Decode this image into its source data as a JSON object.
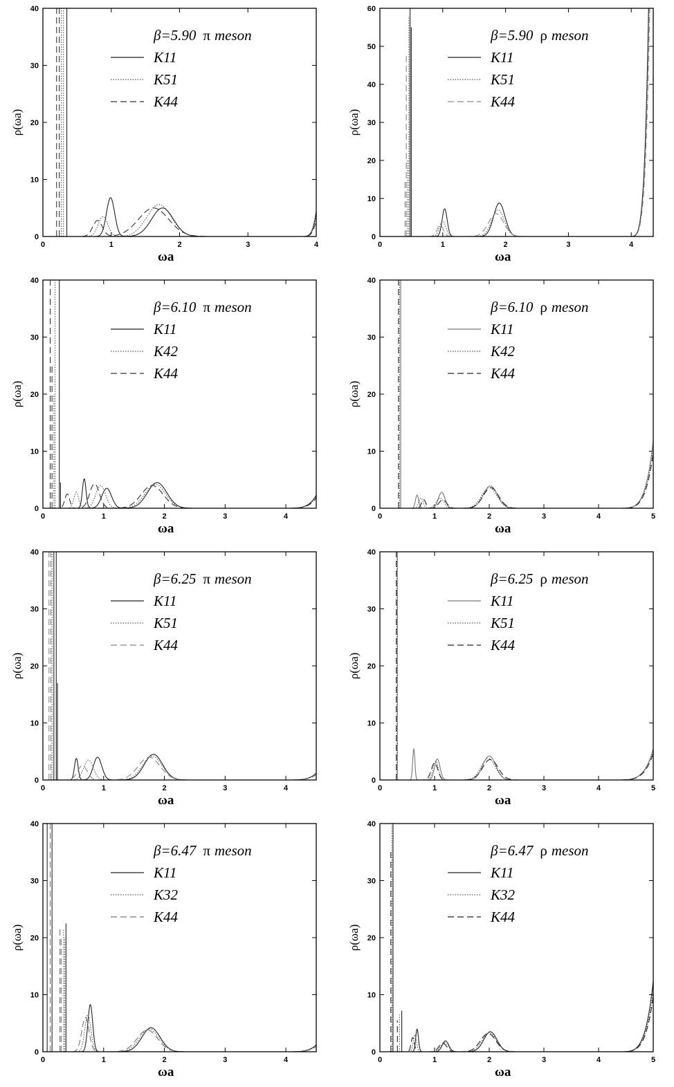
{
  "figure": {
    "background": "#ffffff"
  },
  "chart_data": [
    {
      "id": "p1",
      "type": "line",
      "title_beta": "β=5.90",
      "title_particle": "π",
      "title_suffix": "meson",
      "xlabel": "ωa",
      "ylabel": "ρ(ωa)",
      "xlim": [
        0,
        4
      ],
      "ylim": [
        0,
        40
      ],
      "xticks": [
        "0",
        "1",
        "2",
        "3",
        "4"
      ],
      "yticks": [
        "0",
        "10",
        "20",
        "30",
        "40"
      ],
      "legend": [
        "K11",
        "K51",
        "K44"
      ],
      "series": [
        {
          "name": "K11",
          "dash": "solid",
          "color": "#222222",
          "spikes": [
            [
              0.35,
              40
            ]
          ],
          "peaks": [
            [
              0.99,
              6.8,
              0.06
            ],
            [
              1.75,
              5.0,
              0.16
            ]
          ],
          "tail": [
            3.75,
            4.0,
            4.5
          ]
        },
        {
          "name": "K51",
          "dash": "dotted",
          "color": "#555555",
          "spikes": [
            [
              0.3,
              40
            ],
            [
              0.27,
              40
            ]
          ],
          "peaks": [
            [
              0.88,
              3.5,
              0.07
            ],
            [
              1.7,
              5.6,
              0.18
            ]
          ],
          "tail": [
            3.75,
            4.0,
            3.6
          ]
        },
        {
          "name": "K44",
          "dash": "dashed",
          "color": "#333333",
          "spikes": [
            [
              0.2,
              40
            ],
            [
              0.24,
              40
            ]
          ],
          "peaks": [
            [
              0.8,
              2.8,
              0.07
            ],
            [
              1.62,
              5.0,
              0.22
            ]
          ],
          "tail": [
            3.75,
            4.0,
            3.0
          ]
        }
      ]
    },
    {
      "id": "p2",
      "type": "line",
      "title_beta": "β=5.90",
      "title_particle": "ρ",
      "title_suffix": "meson",
      "xlabel": "ωa",
      "ylabel": "ρ(ωa)",
      "xlim": [
        0,
        4.35
      ],
      "ylim": [
        0,
        60
      ],
      "xticks": [
        "0",
        "1",
        "2",
        "3",
        "4"
      ],
      "yticks": [
        "0",
        "10",
        "20",
        "30",
        "40",
        "50",
        "60"
      ],
      "legend": [
        "K11",
        "K51",
        "K44"
      ],
      "series": [
        {
          "name": "K11",
          "dash": "solid",
          "color": "#222222",
          "spikes": [
            [
              0.48,
              60
            ],
            [
              0.5,
              55
            ]
          ],
          "peaks": [
            [
              1.03,
              7.3,
              0.04
            ],
            [
              1.9,
              8.8,
              0.09
            ]
          ],
          "tail": [
            3.95,
            4.18,
            10.5
          ]
        },
        {
          "name": "K51",
          "dash": "dotted",
          "color": "#555555",
          "spikes": [
            [
              0.46,
              58
            ],
            [
              0.44,
              20
            ]
          ],
          "peaks": [
            [
              1.0,
              4.0,
              0.05
            ],
            [
              1.88,
              7.0,
              0.1
            ]
          ],
          "tail": [
            3.95,
            4.18,
            9.0
          ]
        },
        {
          "name": "K44",
          "dash": "dashed",
          "color": "#888888",
          "spikes": [
            [
              0.42,
              48
            ],
            [
              0.4,
              15
            ]
          ],
          "peaks": [
            [
              0.96,
              3.0,
              0.05
            ],
            [
              1.85,
              6.0,
              0.12
            ]
          ],
          "tail": [
            3.95,
            4.18,
            8.0
          ]
        }
      ]
    },
    {
      "id": "p3",
      "type": "line",
      "title_beta": "β=6.10",
      "title_particle": "π",
      "title_suffix": "meson",
      "xlabel": "ωa",
      "ylabel": "ρ(ωa)",
      "xlim": [
        0,
        4.5
      ],
      "ylim": [
        0,
        40
      ],
      "xticks": [
        "0",
        "1",
        "2",
        "3",
        "4"
      ],
      "yticks": [
        "0",
        "10",
        "20",
        "30",
        "40"
      ],
      "legend": [
        "K11",
        "K42",
        "K44"
      ],
      "series": [
        {
          "name": "K11",
          "dash": "solid",
          "color": "#222222",
          "spikes": [
            [
              0.27,
              40
            ],
            [
              0.29,
              4.5
            ]
          ],
          "peaks": [
            [
              0.68,
              5.2,
              0.03
            ],
            [
              1.05,
              3.5,
              0.08
            ],
            [
              1.88,
              4.5,
              0.16
            ]
          ],
          "tail": [
            3.9,
            4.5,
            2.3
          ]
        },
        {
          "name": "K42",
          "dash": "dotted",
          "color": "#555555",
          "spikes": [
            [
              0.2,
              40
            ],
            [
              0.18,
              20
            ]
          ],
          "peaks": [
            [
              0.55,
              2.8,
              0.04
            ],
            [
              0.95,
              4.0,
              0.08
            ],
            [
              1.85,
              4.2,
              0.17
            ]
          ],
          "tail": [
            3.9,
            4.5,
            2.0
          ]
        },
        {
          "name": "K44",
          "dash": "dashed",
          "color": "#333333",
          "spikes": [
            [
              0.12,
              40
            ],
            [
              0.15,
              25
            ]
          ],
          "peaks": [
            [
              0.4,
              2.5,
              0.04
            ],
            [
              0.85,
              4.3,
              0.08
            ],
            [
              1.8,
              4.0,
              0.18
            ]
          ],
          "tail": [
            3.9,
            4.5,
            1.8
          ]
        }
      ]
    },
    {
      "id": "p4",
      "type": "line",
      "title_beta": "β=6.10",
      "title_particle": "ρ",
      "title_suffix": "meson",
      "xlabel": "ωa",
      "ylabel": "ρ(ωa)",
      "xlim": [
        0,
        5
      ],
      "ylim": [
        0,
        40
      ],
      "xticks": [
        "0",
        "1",
        "2",
        "3",
        "4",
        "5"
      ],
      "yticks": [
        "0",
        "10",
        "20",
        "30",
        "40"
      ],
      "legend": [
        "K11",
        "K42",
        "K44"
      ],
      "series": [
        {
          "name": "K11",
          "dash": "solid",
          "color": "#777777",
          "spikes": [
            [
              0.38,
              40
            ]
          ],
          "peaks": [
            [
              0.68,
              2.3,
              0.03
            ],
            [
              1.13,
              2.8,
              0.06
            ],
            [
              2.02,
              3.9,
              0.13
            ]
          ],
          "tail": [
            4.3,
            4.8,
            2.2
          ]
        },
        {
          "name": "K42",
          "dash": "dotted",
          "color": "#555555",
          "spikes": [
            [
              0.36,
              40
            ]
          ],
          "peaks": [
            [
              0.75,
              1.8,
              0.04
            ],
            [
              1.1,
              1.8,
              0.07
            ],
            [
              2.0,
              3.6,
              0.14
            ]
          ],
          "tail": [
            4.3,
            4.8,
            2.0
          ]
        },
        {
          "name": "K44",
          "dash": "dashed",
          "color": "#222222",
          "spikes": [
            [
              0.34,
              40
            ]
          ],
          "peaks": [
            [
              0.8,
              1.5,
              0.04
            ],
            [
              1.15,
              1.5,
              0.07
            ],
            [
              2.03,
              3.6,
              0.14
            ]
          ],
          "tail": [
            4.3,
            4.8,
            1.8
          ]
        }
      ]
    },
    {
      "id": "p5",
      "type": "line",
      "title_beta": "β=6.25",
      "title_particle": "π",
      "title_suffix": "meson",
      "xlabel": "ωa",
      "ylabel": "ρ(ωa)",
      "xlim": [
        0,
        4.5
      ],
      "ylim": [
        0,
        40
      ],
      "xticks": [
        "0",
        "1",
        "2",
        "3",
        "4"
      ],
      "yticks": [
        "0",
        "10",
        "20",
        "30",
        "40"
      ],
      "legend": [
        "K11",
        "K51",
        "K44"
      ],
      "series": [
        {
          "name": "K11",
          "dash": "solid",
          "color": "#222222",
          "spikes": [
            [
              0.22,
              40
            ],
            [
              0.18,
              40
            ],
            [
              0.24,
              17
            ]
          ],
          "peaks": [
            [
              0.55,
              3.8,
              0.03
            ],
            [
              0.9,
              4.0,
              0.07
            ],
            [
              1.82,
              4.5,
              0.15
            ]
          ],
          "tail": [
            3.9,
            4.5,
            1.2
          ]
        },
        {
          "name": "K51",
          "dash": "dotted",
          "color": "#555555",
          "spikes": [
            [
              0.15,
              40
            ]
          ],
          "peaks": [
            [
              0.75,
              3.5,
              0.08
            ],
            [
              1.8,
              4.2,
              0.16
            ]
          ],
          "tail": [
            3.9,
            4.5,
            1.0
          ]
        },
        {
          "name": "K44",
          "dash": "dashed",
          "color": "#888888",
          "spikes": [
            [
              0.1,
              40
            ],
            [
              0.13,
              40
            ]
          ],
          "peaks": [
            [
              0.65,
              2.5,
              0.08
            ],
            [
              1.75,
              4.0,
              0.18
            ]
          ],
          "tail": [
            3.9,
            4.5,
            0.9
          ]
        }
      ]
    },
    {
      "id": "p6",
      "type": "line",
      "title_beta": "β=6.25",
      "title_particle": "ρ",
      "title_suffix": "meson",
      "xlabel": "ωa",
      "ylabel": "ρ(ωa)",
      "xlim": [
        0,
        5
      ],
      "ylim": [
        0,
        40
      ],
      "xticks": [
        "0",
        "1",
        "2",
        "3",
        "4",
        "5"
      ],
      "yticks": [
        "0",
        "10",
        "20",
        "30",
        "40"
      ],
      "legend": [
        "K11",
        "K51",
        "K44"
      ],
      "series": [
        {
          "name": "K11",
          "dash": "solid",
          "color": "#777777",
          "spikes": [
            [
              0.32,
              40
            ]
          ],
          "peaks": [
            [
              0.62,
              5.5,
              0.02
            ],
            [
              1.05,
              3.7,
              0.05
            ],
            [
              2.0,
              4.2,
              0.12
            ]
          ],
          "tail": [
            4.2,
            4.8,
            1.3
          ]
        },
        {
          "name": "K51",
          "dash": "dotted",
          "color": "#555555",
          "spikes": [
            [
              0.31,
              40
            ]
          ],
          "peaks": [
            [
              1.02,
              3.3,
              0.05
            ],
            [
              1.98,
              3.8,
              0.13
            ]
          ],
          "tail": [
            4.2,
            4.8,
            1.2
          ]
        },
        {
          "name": "K44",
          "dash": "dashed",
          "color": "#222222",
          "spikes": [
            [
              0.3,
              40
            ]
          ],
          "peaks": [
            [
              1.0,
              3.0,
              0.06
            ],
            [
              2.02,
              3.6,
              0.14
            ]
          ],
          "tail": [
            4.2,
            4.8,
            1.1
          ]
        }
      ]
    },
    {
      "id": "p7",
      "type": "line",
      "title_beta": "β=6.47",
      "title_particle": "π",
      "title_suffix": "meson",
      "xlabel": "ωa",
      "ylabel": "ρ(ωa)",
      "xlim": [
        0,
        4.5
      ],
      "ylim": [
        0,
        40
      ],
      "xticks": [
        "0",
        "1",
        "2",
        "3",
        "4"
      ],
      "yticks": [
        "0",
        "10",
        "20",
        "30",
        "40"
      ],
      "legend": [
        "K11",
        "K32",
        "K44"
      ],
      "series": [
        {
          "name": "K11",
          "dash": "solid",
          "color": "#222222",
          "spikes": [
            [
              0.07,
              40
            ],
            [
              0.15,
              40
            ],
            [
              0.38,
              22.5
            ]
          ],
          "peaks": [
            [
              0.78,
              8.3,
              0.04
            ],
            [
              1.78,
              4.2,
              0.15
            ]
          ],
          "tail": [
            3.9,
            4.5,
            1.2
          ]
        },
        {
          "name": "K32",
          "dash": "dotted",
          "color": "#555555",
          "spikes": [
            [
              0.34,
              21.5
            ],
            [
              0.36,
              20
            ]
          ],
          "peaks": [
            [
              0.74,
              6.5,
              0.05
            ],
            [
              1.75,
              4.0,
              0.16
            ]
          ],
          "tail": [
            3.9,
            4.5,
            1.0
          ]
        },
        {
          "name": "K44",
          "dash": "dashed",
          "color": "#777777",
          "spikes": [
            [
              0.12,
              40
            ],
            [
              0.28,
              21.5
            ],
            [
              0.3,
              20
            ]
          ],
          "peaks": [
            [
              0.7,
              6.0,
              0.06
            ],
            [
              1.72,
              3.8,
              0.17
            ]
          ],
          "tail": [
            3.9,
            4.5,
            0.9
          ]
        }
      ]
    },
    {
      "id": "p8",
      "type": "line",
      "title_beta": "β=6.47",
      "title_particle": "ρ",
      "title_suffix": "meson",
      "xlabel": "ωa",
      "ylabel": "ρ(ωa)",
      "xlim": [
        0,
        5
      ],
      "ylim": [
        0,
        40
      ],
      "xticks": [
        "0",
        "1",
        "2",
        "3",
        "4",
        "5"
      ],
      "yticks": [
        "0",
        "10",
        "20",
        "30",
        "40"
      ],
      "legend": [
        "K11",
        "K32",
        "K44"
      ],
      "series": [
        {
          "name": "K11",
          "dash": "solid",
          "color": "#222222",
          "spikes": [
            [
              0.24,
              40
            ],
            [
              0.4,
              7.2
            ]
          ],
          "peaks": [
            [
              0.68,
              4.0,
              0.025
            ],
            [
              1.2,
              1.9,
              0.06
            ],
            [
              2.02,
              3.5,
              0.12
            ]
          ],
          "tail": [
            4.3,
            4.8,
            2.3
          ]
        },
        {
          "name": "K32",
          "dash": "dotted",
          "color": "#555555",
          "spikes": [
            [
              0.22,
              40
            ],
            [
              0.36,
              6.5
            ]
          ],
          "peaks": [
            [
              0.64,
              3.0,
              0.03
            ],
            [
              1.18,
              1.6,
              0.07
            ],
            [
              2.0,
              3.3,
              0.13
            ]
          ],
          "tail": [
            4.3,
            4.8,
            2.0
          ]
        },
        {
          "name": "K44",
          "dash": "dashed",
          "color": "#222222",
          "spikes": [
            [
              0.2,
              35
            ],
            [
              0.32,
              5.5
            ]
          ],
          "peaks": [
            [
              0.6,
              2.5,
              0.03
            ],
            [
              1.15,
              1.5,
              0.07
            ],
            [
              1.98,
              3.2,
              0.14
            ]
          ],
          "tail": [
            4.3,
            4.8,
            1.8
          ]
        }
      ]
    }
  ]
}
